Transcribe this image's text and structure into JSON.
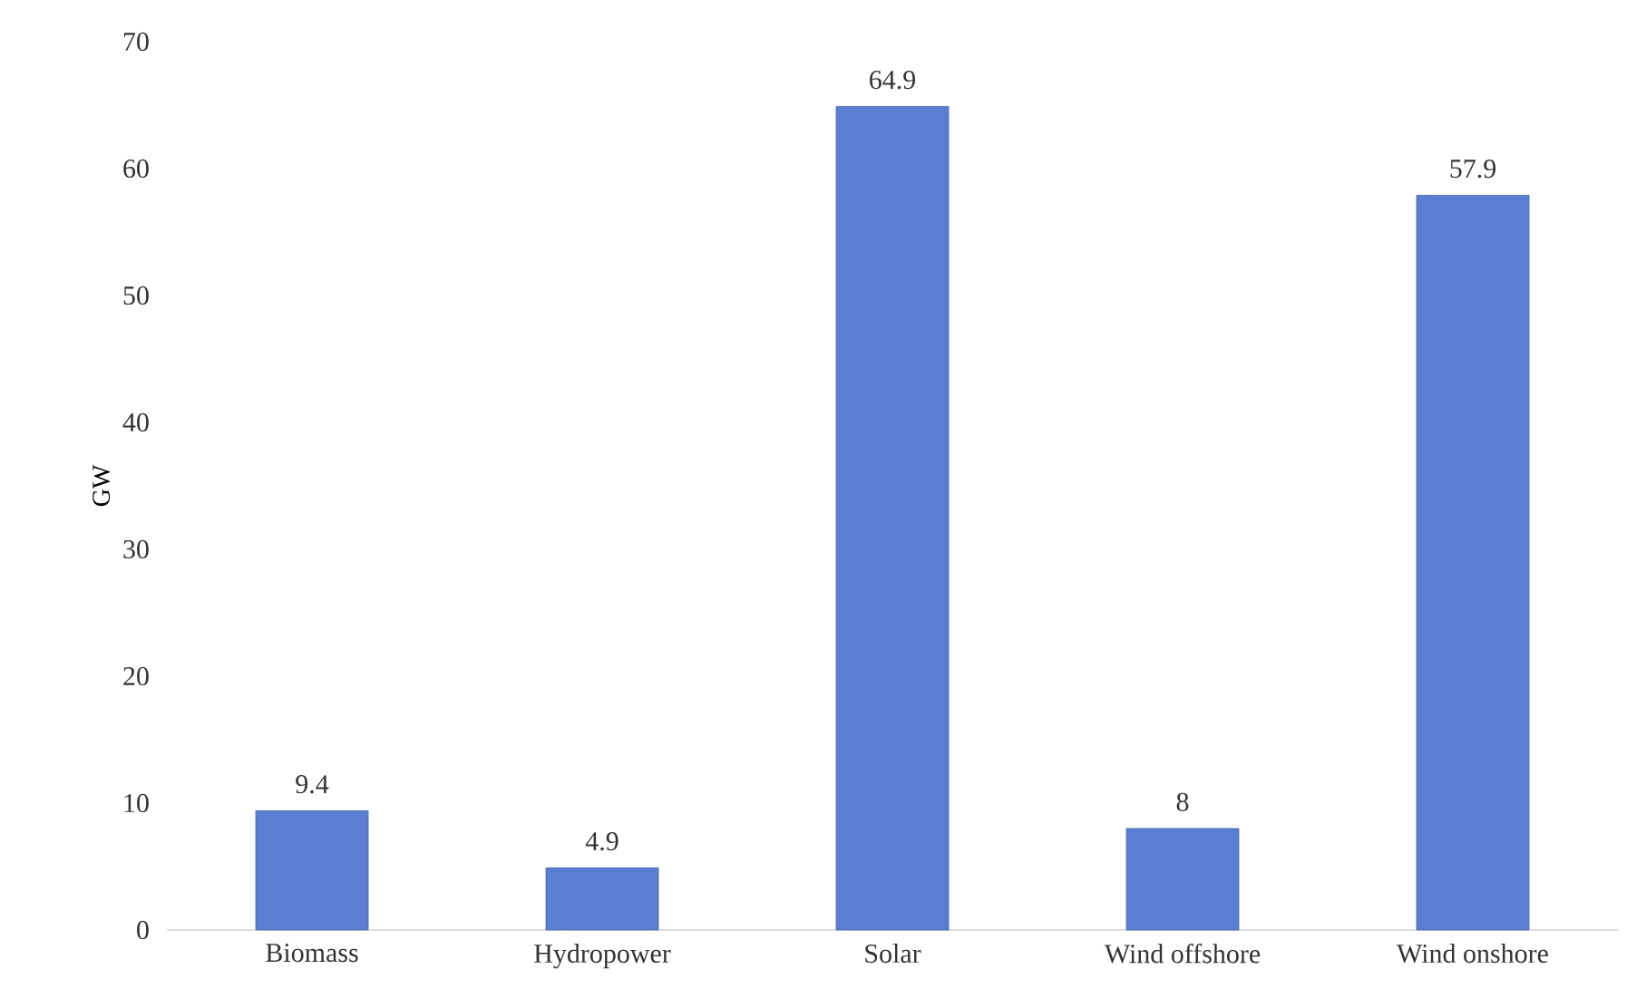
{
  "chart_data": {
    "type": "bar",
    "ylabel": "GW",
    "categories": [
      "Biomass",
      "Hydropower",
      "Solar",
      "Wind offshore",
      "Wind onshore"
    ],
    "values": [
      9.4,
      4.9,
      64.9,
      8,
      57.9
    ],
    "color": "#5a7fd2",
    "ylim": [
      0,
      70
    ],
    "yticks": [
      0,
      10,
      20,
      30,
      40,
      50,
      60,
      70
    ],
    "data_labels": true
  }
}
